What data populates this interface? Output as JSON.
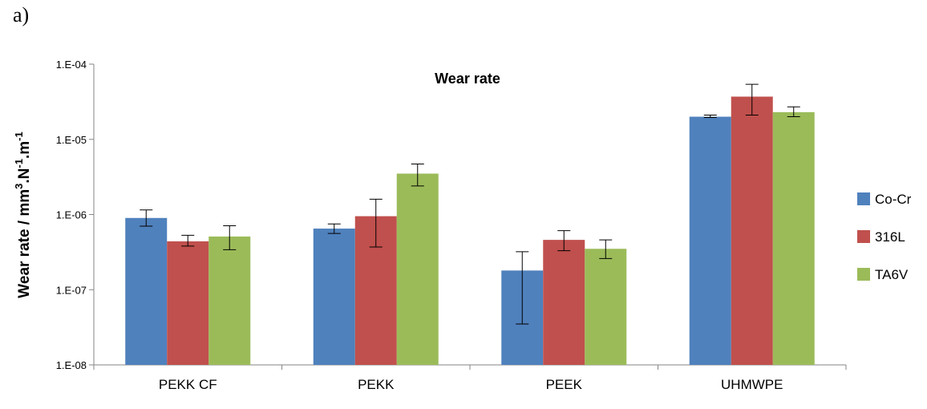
{
  "panel_label": "a)",
  "chart_data": {
    "type": "bar",
    "title": "Wear rate",
    "xlabel": "",
    "ylabel": "Wear rate / mm³.N⁻¹.m⁻¹",
    "yscale": "log",
    "ylim": [
      1e-08,
      0.0001
    ],
    "yticks": [
      {
        "value": 1e-08,
        "label": "1.E-08"
      },
      {
        "value": 1e-07,
        "label": "1.E-07"
      },
      {
        "value": 1e-06,
        "label": "1.E-06"
      },
      {
        "value": 1e-05,
        "label": "1.E-05"
      },
      {
        "value": 0.0001,
        "label": "1.E-04"
      }
    ],
    "categories": [
      "PEKK CF",
      "PEKK",
      "PEEK",
      "UHMWPE"
    ],
    "series": [
      {
        "name": "Co-Cr",
        "color": "#4f81bd",
        "values": [
          9e-07,
          6.5e-07,
          1.8e-07,
          2e-05
        ],
        "err_low": [
          7e-07,
          5.6e-07,
          3.5e-08,
          1.95e-05
        ],
        "err_high": [
          1.15e-06,
          7.5e-07,
          3.2e-07,
          2.1e-05
        ]
      },
      {
        "name": "316L",
        "color": "#c0504d",
        "values": [
          4.4e-07,
          9.5e-07,
          4.6e-07,
          3.7e-05
        ],
        "err_low": [
          3.8e-07,
          3.7e-07,
          3.3e-07,
          2.1e-05
        ],
        "err_high": [
          5.3e-07,
          1.6e-06,
          6.1e-07,
          5.4e-05
        ]
      },
      {
        "name": "TA6V",
        "color": "#9bbb59",
        "values": [
          5.1e-07,
          3.5e-06,
          3.5e-07,
          2.3e-05
        ],
        "err_low": [
          3.4e-07,
          2.4e-06,
          2.6e-07,
          2e-05
        ],
        "err_high": [
          7.1e-07,
          4.7e-06,
          4.6e-07,
          2.7e-05
        ]
      }
    ],
    "grid": false,
    "legend": "right"
  }
}
